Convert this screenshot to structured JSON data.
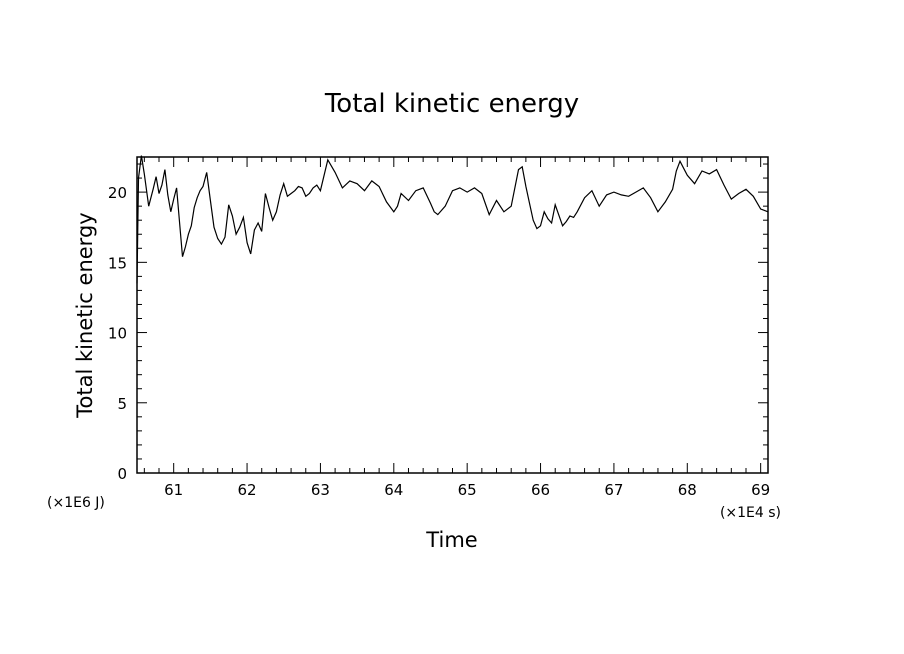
{
  "chart_data": {
    "type": "line",
    "title": "Total kinetic energy",
    "xlabel": "Time",
    "ylabel": "Total kinetic energy",
    "x_unit": "(×1E4 s)",
    "y_unit": "(×1E6 J)",
    "xlim": [
      60.5,
      69.1
    ],
    "ylim": [
      0,
      22.5
    ],
    "x_ticks": [
      61,
      62,
      63,
      64,
      65,
      66,
      67,
      68,
      69
    ],
    "y_ticks": [
      0,
      5,
      10,
      15,
      20
    ],
    "grid": false,
    "series": [
      {
        "x": [
          60.5,
          60.52,
          60.56,
          60.6,
          60.66,
          60.72,
          60.76,
          60.8,
          60.84,
          60.88,
          60.92,
          60.96,
          61.0,
          61.04,
          61.08,
          61.12,
          61.16,
          61.2,
          61.24,
          61.28,
          61.32,
          61.36,
          61.4,
          61.45,
          61.5,
          61.55,
          61.6,
          61.65,
          61.7,
          61.75,
          61.8,
          61.85,
          61.9,
          61.95,
          62.0,
          62.05,
          62.1,
          62.15,
          62.2,
          62.25,
          62.3,
          62.35,
          62.4,
          62.45,
          62.5,
          62.55,
          62.6,
          62.65,
          62.7,
          62.75,
          62.8,
          62.85,
          62.9,
          62.95,
          63.0,
          63.1,
          63.2,
          63.3,
          63.4,
          63.45,
          63.5,
          63.6,
          63.7,
          63.8,
          63.9,
          64.0,
          64.05,
          64.1,
          64.2,
          64.3,
          64.4,
          64.5,
          64.55,
          64.6,
          64.7,
          64.8,
          64.9,
          65.0,
          65.1,
          65.2,
          65.3,
          65.4,
          65.5,
          65.6,
          65.7,
          65.75,
          65.8,
          65.85,
          65.9,
          65.95,
          66.0,
          66.05,
          66.1,
          66.15,
          66.2,
          66.3,
          66.35,
          66.4,
          66.45,
          66.5,
          66.6,
          66.7,
          66.8,
          66.9,
          67.0,
          67.1,
          67.2,
          67.3,
          67.4,
          67.5,
          67.6,
          67.7,
          67.8,
          67.85,
          67.9,
          67.95,
          68.0,
          68.1,
          68.2,
          68.3,
          68.4,
          68.5,
          68.6,
          68.7,
          68.8,
          68.9,
          69.0,
          69.1
        ],
        "y": [
          13.5,
          21.0,
          22.6,
          21.3,
          19.0,
          20.2,
          21.1,
          19.9,
          20.5,
          21.6,
          19.8,
          18.6,
          19.5,
          20.3,
          17.8,
          15.4,
          16.1,
          17.0,
          17.6,
          18.9,
          19.6,
          20.1,
          20.4,
          21.4,
          19.4,
          17.5,
          16.7,
          16.3,
          16.8,
          19.1,
          18.3,
          17.0,
          17.5,
          18.2,
          16.4,
          15.6,
          17.3,
          17.8,
          17.2,
          19.9,
          18.9,
          18.0,
          18.6,
          19.8,
          20.6,
          19.7,
          19.9,
          20.1,
          20.4,
          20.3,
          19.7,
          19.9,
          20.3,
          20.5,
          20.1,
          22.3,
          21.4,
          20.3,
          20.8,
          20.7,
          20.6,
          20.1,
          20.8,
          20.4,
          19.3,
          18.6,
          19.0,
          19.9,
          19.4,
          20.1,
          20.3,
          19.2,
          18.6,
          18.4,
          19.0,
          20.1,
          20.3,
          20.0,
          20.3,
          19.9,
          18.4,
          19.4,
          18.6,
          19.0,
          21.6,
          21.8,
          20.4,
          19.2,
          18.0,
          17.4,
          17.6,
          18.6,
          18.1,
          17.8,
          19.1,
          17.6,
          17.9,
          18.3,
          18.2,
          18.6,
          19.6,
          20.1,
          19.0,
          19.8,
          20.0,
          19.8,
          19.7,
          20.0,
          20.3,
          19.6,
          18.6,
          19.3,
          20.2,
          21.5,
          22.2,
          21.7,
          21.2,
          20.6,
          21.5,
          21.3,
          21.6,
          20.5,
          19.5,
          19.9,
          20.2,
          19.7,
          18.8,
          18.6
        ]
      }
    ]
  }
}
